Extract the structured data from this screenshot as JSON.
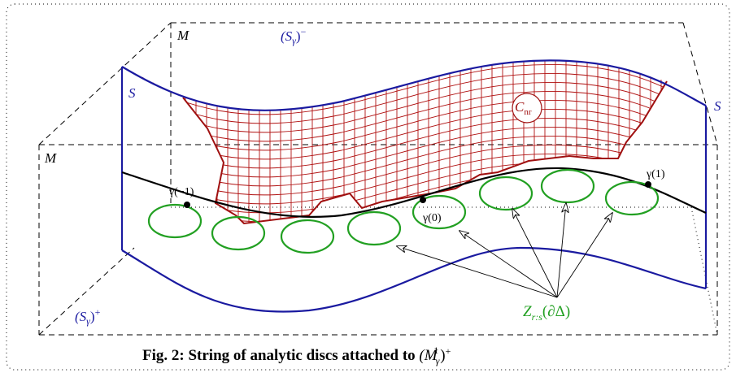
{
  "labels": {
    "m_back": "M",
    "s_gamma_minus": {
      "open": "(S",
      "sub": "γ",
      "close": ")",
      "sup": "−"
    },
    "s_left": "S",
    "s_right": "S",
    "m_front": "M",
    "c_nr": {
      "base": "C",
      "sub": "nr"
    },
    "gamma_minus1": "γ(−1)",
    "gamma_0": "γ(0)",
    "gamma_1": "γ(1)",
    "z_rs": {
      "base": "Z",
      "sub": "r:s",
      "rest": "(∂Δ)"
    },
    "s_gamma_plus": {
      "open": "(S",
      "sub": "γ",
      "close": ")",
      "sup": "+"
    }
  },
  "caption": {
    "text": "Fig. 2: String of analytic discs attached to ",
    "math_open": "(M",
    "math_sub": "γ",
    "math_sup": "1",
    "math_close": ")",
    "math_sup2": "+"
  }
}
